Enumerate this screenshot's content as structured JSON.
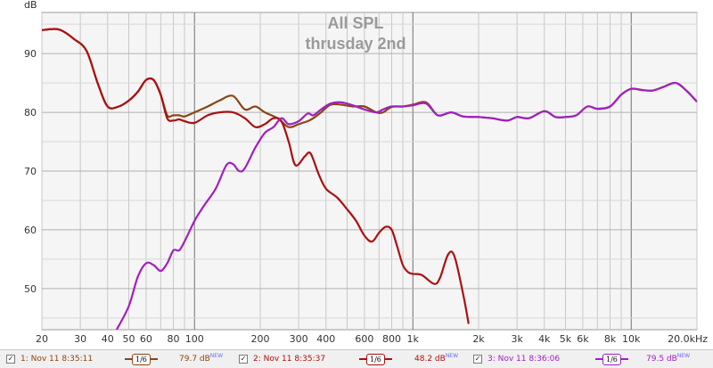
{
  "chart_data": {
    "type": "line",
    "title": "All SPL",
    "subtitle": "thrusday 2nd",
    "ylabel": "dB",
    "xscale": "log",
    "xlim": [
      20,
      20000
    ],
    "ylim": [
      43,
      97
    ],
    "grid": true,
    "x_ticks": [
      "20",
      "30",
      "40",
      "50",
      "60",
      "80",
      "100",
      "200",
      "300",
      "400",
      "600",
      "800",
      "1k",
      "2k",
      "3k",
      "4k",
      "5k",
      "6k",
      "8k",
      "10k",
      "20.0kHz"
    ],
    "y_ticks": [
      "90",
      "80",
      "70",
      "60",
      "50"
    ],
    "series": [
      {
        "name": "1: Nov 11 8:35:11",
        "color": "#8b4513",
        "points": [
          [
            20,
            94
          ],
          [
            23,
            94.2
          ],
          [
            25,
            93.8
          ],
          [
            28,
            92.5
          ],
          [
            32,
            90.5
          ],
          [
            36,
            85
          ],
          [
            40,
            81
          ],
          [
            45,
            81
          ],
          [
            50,
            82
          ],
          [
            55,
            83.5
          ],
          [
            60,
            85.5
          ],
          [
            65,
            85.5
          ],
          [
            70,
            83
          ],
          [
            75,
            79.5
          ],
          [
            80,
            79.5
          ],
          [
            85,
            79.5
          ],
          [
            90,
            79.3
          ],
          [
            100,
            80
          ],
          [
            115,
            81
          ],
          [
            130,
            82
          ],
          [
            150,
            82.8
          ],
          [
            170,
            80.5
          ],
          [
            190,
            81
          ],
          [
            210,
            80
          ],
          [
            240,
            79
          ],
          [
            270,
            77.5
          ],
          [
            300,
            78
          ],
          [
            330,
            78.5
          ],
          [
            350,
            79
          ],
          [
            380,
            80
          ],
          [
            420,
            81.3
          ],
          [
            470,
            81.3
          ],
          [
            530,
            81
          ],
          [
            600,
            81
          ],
          [
            680,
            80
          ],
          [
            730,
            80
          ],
          [
            800,
            80.9
          ],
          [
            900,
            81
          ],
          [
            1000,
            81.3
          ],
          [
            1150,
            81.7
          ],
          [
            1300,
            79.5
          ],
          [
            1500,
            80
          ],
          [
            1700,
            79.3
          ],
          [
            2000,
            79.2
          ],
          [
            2300,
            79
          ],
          [
            2700,
            78.6
          ],
          [
            3000,
            79.2
          ],
          [
            3400,
            79
          ],
          [
            4000,
            80.2
          ],
          [
            4500,
            79.2
          ],
          [
            5000,
            79.2
          ],
          [
            5600,
            79.5
          ],
          [
            6300,
            81
          ],
          [
            7000,
            80.6
          ],
          [
            8000,
            81
          ],
          [
            9000,
            83
          ],
          [
            10000,
            84
          ],
          [
            11200,
            83.8
          ],
          [
            12500,
            83.7
          ],
          [
            14000,
            84.3
          ],
          [
            16000,
            85
          ],
          [
            18000,
            83.6
          ],
          [
            20000,
            81.8
          ]
        ]
      },
      {
        "name": "2: Nov 11 8:35:37",
        "color": "#aa1111",
        "points": [
          [
            20,
            94
          ],
          [
            23,
            94.2
          ],
          [
            25,
            93.8
          ],
          [
            28,
            92.5
          ],
          [
            32,
            90.5
          ],
          [
            36,
            85
          ],
          [
            40,
            81
          ],
          [
            45,
            81
          ],
          [
            50,
            82
          ],
          [
            55,
            83.5
          ],
          [
            60,
            85.5
          ],
          [
            65,
            85.5
          ],
          [
            70,
            83
          ],
          [
            75,
            79
          ],
          [
            80,
            78.6
          ],
          [
            85,
            78.8
          ],
          [
            90,
            78.5
          ],
          [
            100,
            78.2
          ],
          [
            115,
            79.5
          ],
          [
            130,
            80
          ],
          [
            150,
            80
          ],
          [
            170,
            79
          ],
          [
            190,
            77.5
          ],
          [
            210,
            78
          ],
          [
            230,
            79
          ],
          [
            250,
            78.5
          ],
          [
            270,
            75
          ],
          [
            290,
            71
          ],
          [
            320,
            72.5
          ],
          [
            340,
            73
          ],
          [
            370,
            69.5
          ],
          [
            400,
            67
          ],
          [
            450,
            65.5
          ],
          [
            500,
            63.5
          ],
          [
            550,
            61.5
          ],
          [
            600,
            59
          ],
          [
            650,
            58
          ],
          [
            700,
            59.5
          ],
          [
            750,
            60.5
          ],
          [
            800,
            60
          ],
          [
            850,
            57
          ],
          [
            900,
            54
          ],
          [
            950,
            52.8
          ],
          [
            1000,
            52.5
          ],
          [
            1100,
            52.3
          ],
          [
            1250,
            50.8
          ],
          [
            1330,
            51.8
          ],
          [
            1450,
            55.8
          ],
          [
            1550,
            55.5
          ],
          [
            1700,
            49
          ],
          [
            1800,
            44
          ]
        ]
      },
      {
        "name": "3: Nov 11 8:36:06",
        "color": "#a020c0",
        "points": [
          [
            44,
            43
          ],
          [
            50,
            47
          ],
          [
            55,
            52
          ],
          [
            60,
            54.3
          ],
          [
            65,
            54
          ],
          [
            70,
            53
          ],
          [
            75,
            54.3
          ],
          [
            80,
            56.5
          ],
          [
            85,
            56.5
          ],
          [
            90,
            58
          ],
          [
            100,
            61.5
          ],
          [
            110,
            64
          ],
          [
            125,
            67
          ],
          [
            140,
            71
          ],
          [
            150,
            71.2
          ],
          [
            160,
            70
          ],
          [
            170,
            70.5
          ],
          [
            190,
            74
          ],
          [
            210,
            76.5
          ],
          [
            230,
            77.5
          ],
          [
            250,
            79
          ],
          [
            270,
            78
          ],
          [
            300,
            78.5
          ],
          [
            330,
            79.8
          ],
          [
            350,
            79.5
          ],
          [
            380,
            80.5
          ],
          [
            420,
            81.5
          ],
          [
            470,
            81.7
          ],
          [
            530,
            81.2
          ],
          [
            600,
            80.5
          ],
          [
            680,
            80
          ],
          [
            730,
            80.5
          ],
          [
            800,
            81
          ],
          [
            900,
            81
          ],
          [
            1000,
            81.2
          ],
          [
            1150,
            81.5
          ],
          [
            1300,
            79.5
          ],
          [
            1500,
            80
          ],
          [
            1700,
            79.3
          ],
          [
            2000,
            79.2
          ],
          [
            2300,
            79
          ],
          [
            2700,
            78.6
          ],
          [
            3000,
            79.2
          ],
          [
            3400,
            79
          ],
          [
            4000,
            80.2
          ],
          [
            4500,
            79.2
          ],
          [
            5000,
            79.2
          ],
          [
            5600,
            79.5
          ],
          [
            6300,
            81
          ],
          [
            7000,
            80.6
          ],
          [
            8000,
            81
          ],
          [
            9000,
            83
          ],
          [
            10000,
            84
          ],
          [
            11200,
            83.8
          ],
          [
            12500,
            83.7
          ],
          [
            14000,
            84.3
          ],
          [
            16000,
            85
          ],
          [
            18000,
            83.6
          ],
          [
            20000,
            81.8
          ]
        ]
      }
    ]
  },
  "legend": [
    {
      "check": "✓",
      "name": "1: Nov 11 8:35:11",
      "smoothing": "1/6",
      "value": "79.7 dB",
      "badge": "NEW",
      "color": "#8b4513"
    },
    {
      "check": "✓",
      "name": "2: Nov 11 8:35:37",
      "smoothing": "1/6",
      "value": "48.2 dB",
      "badge": "NEW",
      "color": "#aa1111"
    },
    {
      "check": "✓",
      "name": "3: Nov 11 8:36:06",
      "smoothing": "1/6",
      "value": "79.5 dB",
      "badge": "NEW",
      "color": "#a020c0"
    }
  ]
}
